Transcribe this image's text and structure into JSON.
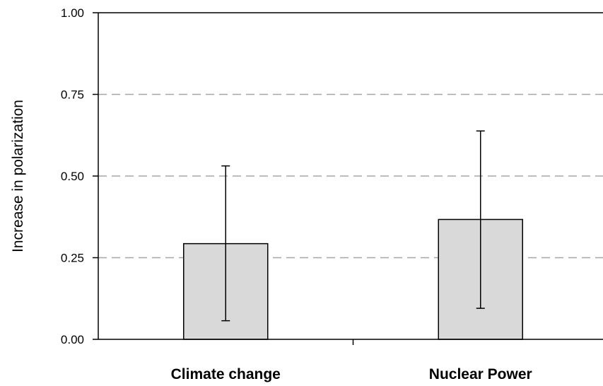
{
  "chart_data": {
    "type": "bar",
    "title": "",
    "xlabel": "",
    "ylabel": "Increase in polarization",
    "categories": [
      "Climate change",
      "Nuclear Power"
    ],
    "values": [
      0.293,
      0.367
    ],
    "error_bars": [
      {
        "lower": 0.057,
        "upper": 0.531
      },
      {
        "lower": 0.095,
        "upper": 0.638
      }
    ],
    "ylim": [
      0,
      1
    ],
    "yticks": [
      "0.00",
      "0.25",
      "0.50",
      "0.75",
      "1.00"
    ],
    "grid": true,
    "colors": {
      "bar_fill": "#d9d9d9",
      "bar_stroke": "#000000",
      "grid": "#a6a6a6",
      "axis": "#000000"
    }
  }
}
